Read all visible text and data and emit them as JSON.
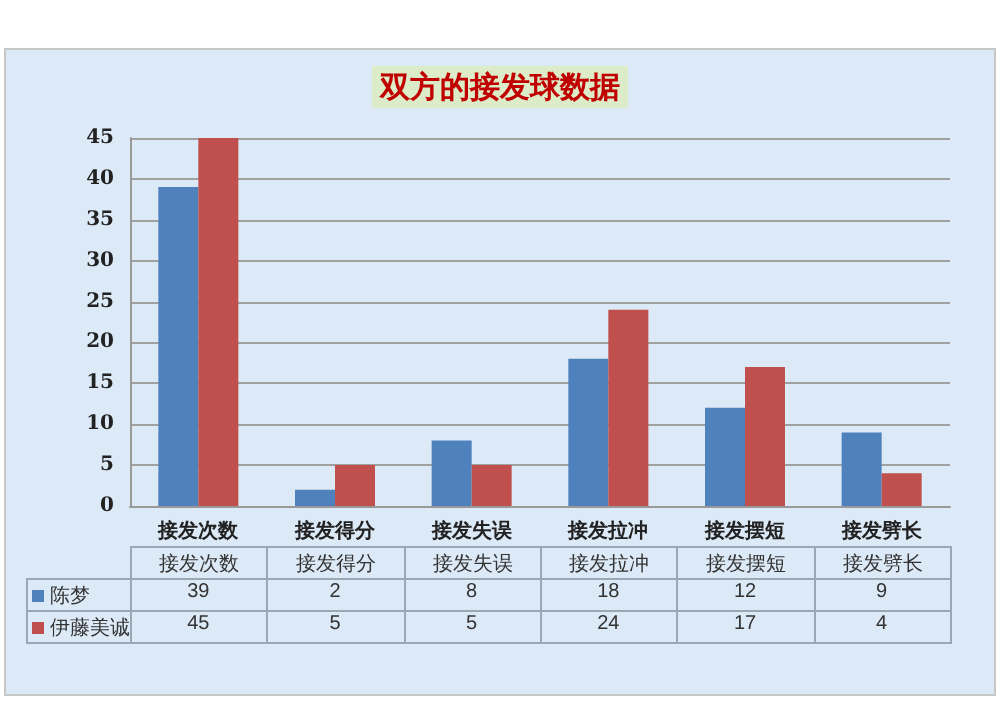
{
  "chart_data": {
    "type": "bar",
    "title": "双方的接发球数据",
    "categories": [
      "接发次数",
      "接发得分",
      "接发失误",
      "接发拉冲",
      "接发摆短",
      "接发劈长"
    ],
    "series": [
      {
        "name": "陈梦",
        "color": "#4f81bd",
        "values": [
          39,
          2,
          8,
          18,
          12,
          9
        ]
      },
      {
        "name": "伊藤美诚",
        "color": "#c0504d",
        "values": [
          45,
          5,
          5,
          24,
          17,
          4
        ]
      }
    ],
    "ylim": [
      0,
      45
    ],
    "yticks": [
      0,
      5,
      10,
      15,
      20,
      25,
      30,
      35,
      40,
      45
    ],
    "grid": "y",
    "legend": "bottom",
    "data_labels": true
  }
}
